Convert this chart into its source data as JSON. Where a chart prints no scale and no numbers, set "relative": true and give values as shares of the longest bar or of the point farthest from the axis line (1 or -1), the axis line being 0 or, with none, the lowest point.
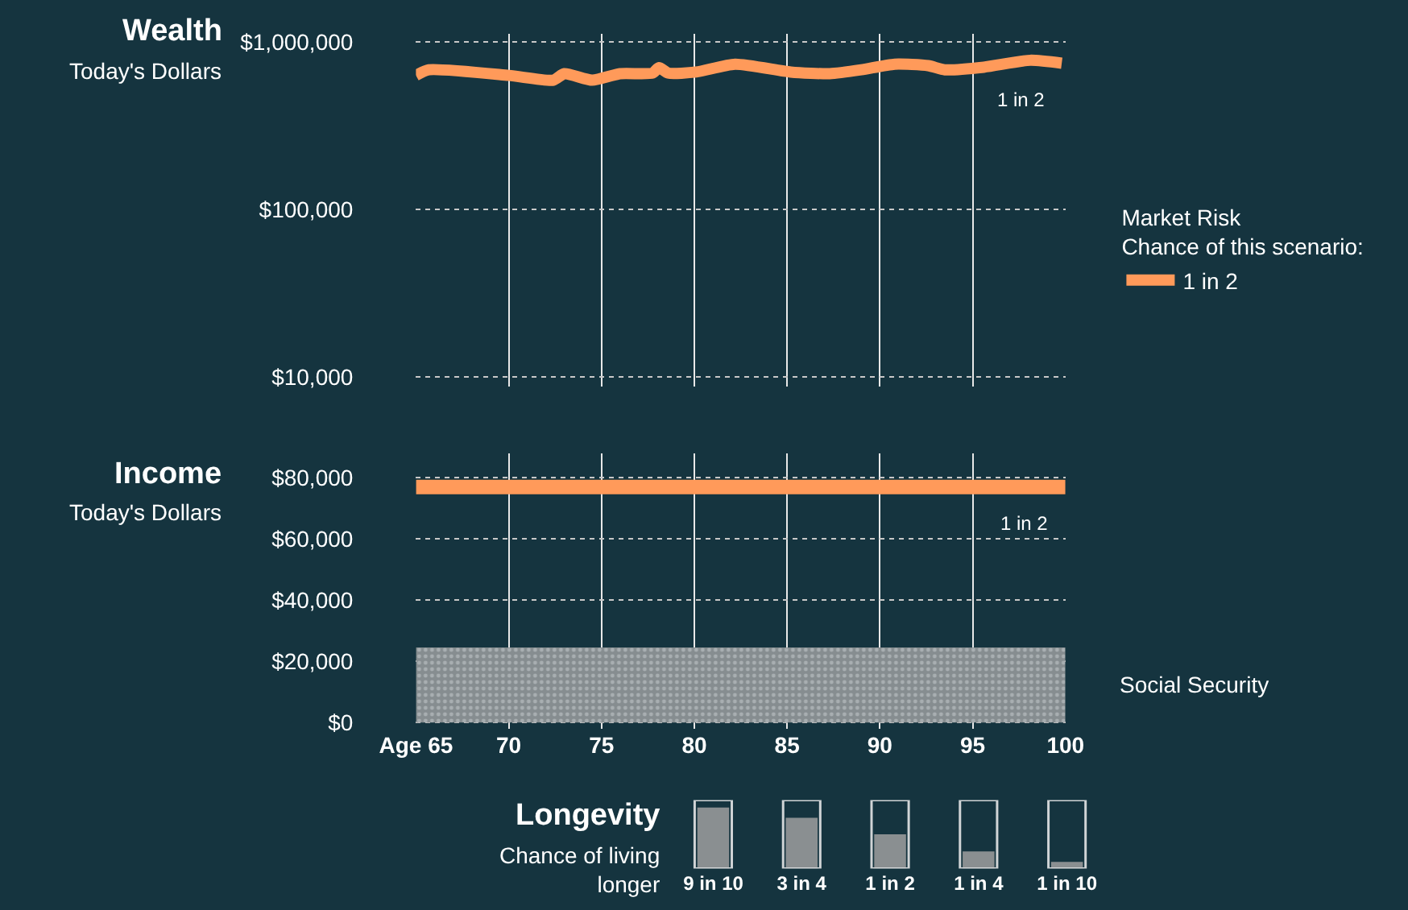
{
  "chart_data": [
    {
      "type": "line",
      "title": "Wealth",
      "subtitle": "Today's Dollars",
      "log": "y",
      "grid": true,
      "tick_labels": "y",
      "legend": "right",
      "legend_title": "Market Risk\nChance of this scenario:",
      "line_style": "solid",
      "marker": "none",
      "x": [
        65,
        65.7,
        70,
        72.4,
        73,
        74.5,
        76,
        77.75,
        78.1,
        78.6,
        80.1,
        82.2,
        85.2,
        87.3,
        89,
        90.8,
        92.6,
        93.5,
        95.6,
        98.1,
        99.8
      ],
      "series": [
        {
          "name": "1 in 2",
          "color": "#ff9a5a",
          "values": [
            630000,
            680000,
            630000,
            590000,
            645000,
            590000,
            645000,
            650000,
            700000,
            650000,
            660000,
            735000,
            660000,
            645000,
            680000,
            735000,
            720000,
            680000,
            705000,
            775000,
            745000
          ]
        }
      ],
      "xlim": [
        65,
        100
      ],
      "xticks": [
        {
          "value": 65,
          "label": null
        },
        {
          "value": 70,
          "label": null
        },
        {
          "value": 75,
          "label": null
        },
        {
          "value": 80,
          "label": null
        },
        {
          "value": 85,
          "label": null
        },
        {
          "value": 90,
          "label": null
        },
        {
          "value": 95,
          "label": null
        },
        {
          "value": 100,
          "label": null
        }
      ],
      "ylim": [
        8800,
        1120000
      ],
      "yticks": [
        {
          "value": 10000,
          "label": "$10,000"
        },
        {
          "value": 100000,
          "label": "$100,000"
        },
        {
          "value": 1000000,
          "label": "$1,000,000"
        }
      ],
      "annotations": [
        "1 in 2"
      ]
    },
    {
      "type": "line",
      "title": "Income",
      "subtitle": "Today's Dollars",
      "grid": true,
      "line_style": "solid",
      "marker": "none",
      "x": [
        65,
        100
      ],
      "series": [
        {
          "type": "area",
          "name": "Social Security",
          "color": "#868d90",
          "values": [
            24500,
            24500
          ]
        },
        {
          "color": "#ff9a5a",
          "values": [
            77000,
            77000
          ]
        }
      ],
      "xlim": [
        65,
        100
      ],
      "xticks": [
        {
          "value": 65,
          "label": "Age 65"
        },
        70,
        75,
        80,
        85,
        90,
        95,
        100
      ],
      "ylim": [
        -2000,
        88000
      ],
      "yticks": [
        {
          "value": 0,
          "label": "$0"
        },
        {
          "value": 20000,
          "label": "$20,000"
        },
        {
          "value": 40000,
          "label": "$40,000"
        },
        {
          "value": 60000,
          "label": "$60,000"
        },
        {
          "value": 80000,
          "label": "$80,000"
        }
      ],
      "annotations": [
        "1 in 2"
      ]
    },
    {
      "type": "bar",
      "title": "Longevity",
      "subtitle": "Chance of living longer",
      "tick_labels": "x",
      "relative": true,
      "categories": [
        "9 in 10",
        "3 in 4",
        "1 in 2",
        "1 in 4",
        "1 in 10"
      ],
      "values": [
        1,
        0.83,
        0.56,
        0.28,
        0.11
      ],
      "color": "#8a8f91"
    }
  ]
}
